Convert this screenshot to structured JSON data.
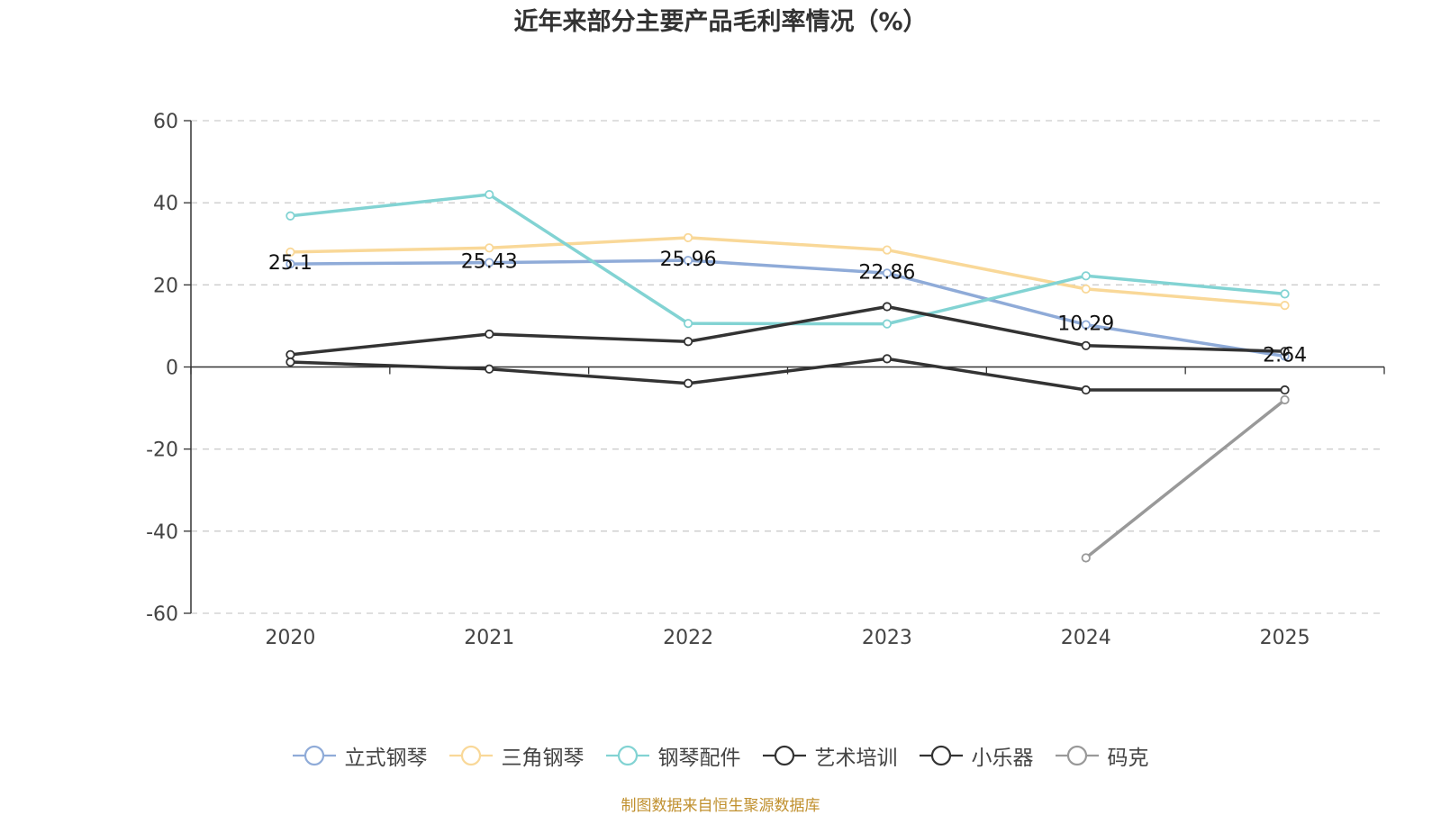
{
  "chart_data": {
    "type": "line",
    "title": "近年来部分主要产品毛利率情况（%）",
    "x": [
      "2020",
      "2021",
      "2022",
      "2023",
      "2024",
      "2025"
    ],
    "ylim": [
      -60,
      60
    ],
    "yticks": [
      60,
      40,
      20,
      0,
      -20,
      -40,
      -60
    ],
    "grid": true,
    "legend_position": "bottom",
    "series": [
      {
        "name": "立式钢琴",
        "color": "#8fabd8",
        "values": [
          25.1,
          25.43,
          25.96,
          22.86,
          10.29,
          2.64
        ],
        "labels": [
          "25.1",
          "25.43",
          "25.96",
          "22.86",
          "10.29",
          "2.64"
        ]
      },
      {
        "name": "三角钢琴",
        "color": "#f9d898",
        "values": [
          28.0,
          29.0,
          31.5,
          28.5,
          19.0,
          15.0
        ]
      },
      {
        "name": "钢琴配件",
        "color": "#82d3d3",
        "values": [
          36.8,
          42.0,
          10.6,
          10.5,
          22.2,
          17.8
        ]
      },
      {
        "name": "艺术培训",
        "color": "#333333",
        "values": [
          3.0,
          8.0,
          6.2,
          14.7,
          5.2,
          3.8
        ]
      },
      {
        "name": "小乐器",
        "color": "#333333",
        "values": [
          1.2,
          -0.5,
          -4.0,
          2.0,
          -5.6,
          -5.6
        ]
      },
      {
        "name": "码克",
        "color": "#999999",
        "values": [
          null,
          null,
          null,
          null,
          -46.5,
          -8.0
        ]
      }
    ]
  },
  "source_note": "制图数据来自恒生聚源数据库"
}
